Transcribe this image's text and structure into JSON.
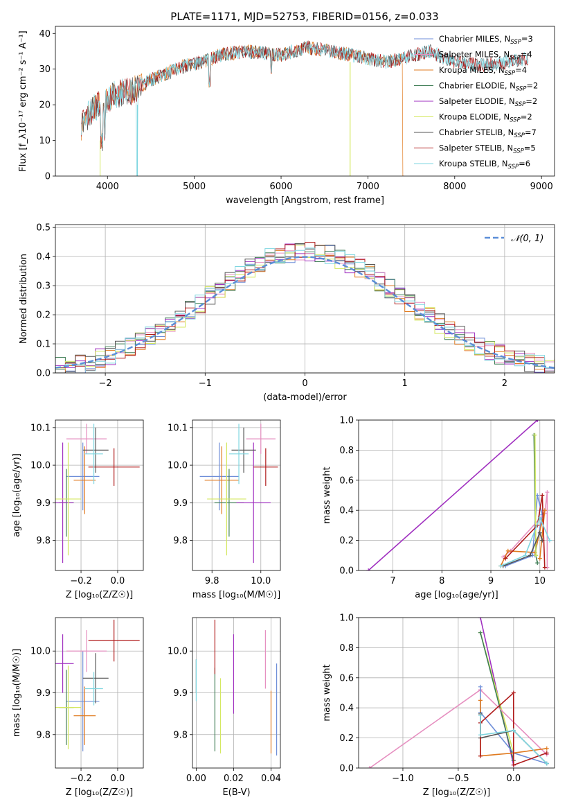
{
  "title": "PLATE=1171, MJD=52753, FIBERID=0156, z=0.033",
  "colors": {
    "chabrier_miles": "#6e8ed8",
    "salpeter_miles": "#e68fc0",
    "kroupa_miles": "#e07a1f",
    "chabrier_elodie": "#3f7d55",
    "salpeter_elodie": "#a030c0",
    "kroupa_elodie": "#d4e860",
    "chabrier_stelib": "#555555",
    "salpeter_stelib": "#b01c1c",
    "kroupa_stelib": "#7fd6e0",
    "gauss": "#5b8ed8"
  },
  "chart_data": [
    {
      "id": "spectrum",
      "type": "line",
      "xlabel": "wavelength [Angstrom, rest frame]",
      "ylabel": "Flux [f_λ10⁻¹⁷ erg cm⁻² s⁻¹ A⁻¹]",
      "xlim": [
        3400,
        9150
      ],
      "ylim": [
        0,
        42
      ],
      "xticks": [
        "4000",
        "5000",
        "6000",
        "7000",
        "8000",
        "9000"
      ],
      "yticks": [
        "0",
        "10",
        "20",
        "30",
        "40"
      ],
      "legend_position": "right",
      "legend": [
        {
          "label": "Chabrier MILES, N",
          "sub": "SSP",
          "suffix": "=3",
          "color": "chabrier_miles"
        },
        {
          "label": "Salpeter MILES, N",
          "sub": "SSP",
          "suffix": "=4",
          "color": "salpeter_miles"
        },
        {
          "label": "Kroupa MILES, N",
          "sub": "SSP",
          "suffix": "=4",
          "color": "kroupa_miles"
        },
        {
          "label": "Chabrier ELODIE, N",
          "sub": "SSP",
          "suffix": "=2",
          "color": "chabrier_elodie"
        },
        {
          "label": "Salpeter ELODIE, N",
          "sub": "SSP",
          "suffix": "=2",
          "color": "salpeter_elodie"
        },
        {
          "label": "Kroupa ELODIE, N",
          "sub": "SSP",
          "suffix": "=2",
          "color": "kroupa_elodie"
        },
        {
          "label": "Chabrier STELIB, N",
          "sub": "SSP",
          "suffix": "=7",
          "color": "chabrier_stelib"
        },
        {
          "label": "Salpeter STELIB, N",
          "sub": "SSP",
          "suffix": "=5",
          "color": "salpeter_stelib"
        },
        {
          "label": "Kroupa STELIB, N",
          "sub": "SSP",
          "suffix": "=6",
          "color": "kroupa_stelib"
        }
      ],
      "continuum": [
        [
          3700,
          14
        ],
        [
          3800,
          18
        ],
        [
          3950,
          21
        ],
        [
          4100,
          23
        ],
        [
          4300,
          24
        ],
        [
          4500,
          27
        ],
        [
          4700,
          29
        ],
        [
          4900,
          31
        ],
        [
          5100,
          32
        ],
        [
          5300,
          34
        ],
        [
          5600,
          35
        ],
        [
          6000,
          34
        ],
        [
          6300,
          36
        ],
        [
          6600,
          35
        ],
        [
          7000,
          33
        ],
        [
          7200,
          32
        ],
        [
          7400,
          33
        ],
        [
          7700,
          35
        ],
        [
          8000,
          32
        ],
        [
          8300,
          31
        ],
        [
          8600,
          32
        ],
        [
          8850,
          33
        ]
      ]
    },
    {
      "id": "residuals",
      "type": "histogram",
      "xlabel": "(data-model)/error",
      "ylabel": "Normed distribution",
      "xlim": [
        -2.5,
        2.5
      ],
      "ylim": [
        0,
        0.51
      ],
      "xticks": [
        "-2",
        "-1",
        "0",
        "1",
        "2"
      ],
      "yticks": [
        "0.0",
        "0.1",
        "0.2",
        "0.3",
        "0.4",
        "0.5"
      ],
      "legend_label": "𝒩(0, 1)",
      "legend_position": "top-right",
      "bin_width": 0.1
    },
    {
      "id": "age_vs_Z",
      "type": "errorbar",
      "xlabel": "Z [log₁₀(Z/Z☉)]",
      "ylabel": "age  [log₁₀(age/yr)]",
      "xlim": [
        -0.34,
        0.14
      ],
      "ylim": [
        9.72,
        10.12
      ],
      "xticks": [
        "-0.2",
        "0.0"
      ],
      "yticks": [
        "9.8",
        "9.9",
        "10.0",
        "10.1"
      ],
      "points": [
        {
          "color": "chabrier_miles",
          "x": -0.19,
          "y": 9.97,
          "xerr": 0.09,
          "yerr": 0.09
        },
        {
          "color": "salpeter_miles",
          "x": -0.17,
          "y": 10.07,
          "xerr": 0.11,
          "yerr": 0.04
        },
        {
          "color": "kroupa_miles",
          "x": -0.18,
          "y": 9.96,
          "xerr": 0.06,
          "yerr": 0.09
        },
        {
          "color": "chabrier_elodie",
          "x": -0.28,
          "y": 9.9,
          "xerr": 0.04,
          "yerr": 0.09
        },
        {
          "color": "salpeter_elodie",
          "x": -0.3,
          "y": 9.9,
          "xerr": 0.06,
          "yerr": 0.16
        },
        {
          "color": "kroupa_elodie",
          "x": -0.27,
          "y": 9.91,
          "xerr": 0.07,
          "yerr": 0.15
        },
        {
          "color": "chabrier_stelib",
          "x": -0.12,
          "y": 10.04,
          "xerr": 0.07,
          "yerr": 0.06
        },
        {
          "color": "salpeter_stelib",
          "x": -0.02,
          "y": 9.995,
          "xerr": 0.14,
          "yerr": 0.05
        },
        {
          "color": "kroupa_stelib",
          "x": -0.13,
          "y": 10.03,
          "xerr": 0.05,
          "yerr": 0.08
        }
      ]
    },
    {
      "id": "age_vs_mass",
      "type": "errorbar",
      "xlabel": "mass [log₁₀(M/M☉)]",
      "ylabel": "",
      "xlim": [
        9.72,
        10.08
      ],
      "ylim": [
        9.72,
        10.12
      ],
      "xticks": [
        "9.8",
        "10.0"
      ],
      "yticks": [
        "9.8",
        "9.9",
        "10.0",
        "10.1"
      ],
      "points": [
        {
          "color": "chabrier_miles",
          "x": 9.83,
          "y": 9.97,
          "xerr": 0.08,
          "yerr": 0.09
        },
        {
          "color": "salpeter_miles",
          "x": 10.0,
          "y": 10.07,
          "xerr": 0.06,
          "yerr": 0.04
        },
        {
          "color": "kroupa_miles",
          "x": 9.84,
          "y": 9.96,
          "xerr": 0.07,
          "yerr": 0.09
        },
        {
          "color": "chabrier_elodie",
          "x": 9.87,
          "y": 9.9,
          "xerr": 0.06,
          "yerr": 0.09
        },
        {
          "color": "salpeter_elodie",
          "x": 9.97,
          "y": 9.9,
          "xerr": 0.07,
          "yerr": 0.16
        },
        {
          "color": "kroupa_elodie",
          "x": 9.86,
          "y": 9.91,
          "xerr": 0.08,
          "yerr": 0.15
        },
        {
          "color": "chabrier_stelib",
          "x": 9.93,
          "y": 10.04,
          "xerr": 0.05,
          "yerr": 0.06
        },
        {
          "color": "salpeter_stelib",
          "x": 10.02,
          "y": 9.995,
          "xerr": 0.05,
          "yerr": 0.05
        },
        {
          "color": "kroupa_stelib",
          "x": 9.91,
          "y": 10.03,
          "xerr": 0.04,
          "yerr": 0.08
        }
      ]
    },
    {
      "id": "weight_vs_age",
      "type": "line",
      "xlabel": "age  [log₁₀(age/yr)]",
      "ylabel": "mass weight",
      "xlim": [
        6.3,
        10.3
      ],
      "ylim": [
        0,
        1
      ],
      "xticks": [
        "7",
        "8",
        "9",
        "10"
      ],
      "yticks": [
        "0.0",
        "0.2",
        "0.4",
        "0.6",
        "0.8",
        "1.0"
      ],
      "series": [
        {
          "color": "salpeter_elodie",
          "x": [
            6.5,
            9.95
          ],
          "y": [
            0.0,
            1.0
          ]
        },
        {
          "color": "chabrier_miles",
          "x": [
            9.3,
            9.85,
            9.95,
            10.05,
            9.9
          ],
          "y": [
            0.03,
            0.1,
            0.5,
            0.37,
            0.1
          ]
        },
        {
          "color": "salpeter_miles",
          "x": [
            9.25,
            9.4,
            10.1,
            10.15,
            10.15
          ],
          "y": [
            0.09,
            0.13,
            0.38,
            0.52,
            0.02
          ]
        },
        {
          "color": "kroupa_miles",
          "x": [
            9.2,
            9.35,
            9.9,
            10.1,
            10.0
          ],
          "y": [
            0.03,
            0.13,
            0.12,
            0.4,
            0.08
          ]
        },
        {
          "color": "chabrier_elodie",
          "x": [
            9.88,
            9.92,
            9.95
          ],
          "y": [
            0.9,
            0.1,
            0.05
          ]
        },
        {
          "color": "kroupa_elodie",
          "x": [
            9.9,
            9.92
          ],
          "y": [
            0.9,
            0.1
          ]
        },
        {
          "color": "chabrier_stelib",
          "x": [
            9.25,
            9.8,
            10.0,
            10.05
          ],
          "y": [
            0.03,
            0.1,
            0.25,
            0.2
          ]
        },
        {
          "color": "salpeter_stelib",
          "x": [
            9.3,
            9.95,
            10.05,
            10.1
          ],
          "y": [
            0.08,
            0.3,
            0.5,
            0.02
          ]
        },
        {
          "color": "kroupa_stelib",
          "x": [
            9.2,
            9.7,
            10.0,
            10.2
          ],
          "y": [
            0.03,
            0.1,
            0.35,
            0.2
          ]
        }
      ]
    },
    {
      "id": "mass_vs_Z",
      "type": "errorbar",
      "xlabel": "Z [log₁₀(Z/Z☉)]",
      "ylabel": "mass [log₁₀(M/M☉)]",
      "xlim": [
        -0.34,
        0.14
      ],
      "ylim": [
        9.72,
        10.08
      ],
      "xticks": [
        "-0.2",
        "0.0"
      ],
      "yticks": [
        "9.8",
        "9.9",
        "10.0"
      ],
      "points": [
        {
          "color": "chabrier_miles",
          "x": -0.19,
          "y": 9.88,
          "xerr": 0.09,
          "yerr": 0.12
        },
        {
          "color": "salpeter_miles",
          "x": -0.17,
          "y": 10.0,
          "xerr": 0.11,
          "yerr": 0.05
        },
        {
          "color": "kroupa_miles",
          "x": -0.18,
          "y": 9.845,
          "xerr": 0.06,
          "yerr": 0.07
        },
        {
          "color": "chabrier_elodie",
          "x": -0.28,
          "y": 9.865,
          "xerr": 0.04,
          "yerr": 0.09
        },
        {
          "color": "salpeter_elodie",
          "x": -0.3,
          "y": 9.97,
          "xerr": 0.06,
          "yerr": 0.07
        },
        {
          "color": "kroupa_elodie",
          "x": -0.27,
          "y": 9.865,
          "xerr": 0.07,
          "yerr": 0.1
        },
        {
          "color": "chabrier_stelib",
          "x": -0.12,
          "y": 9.935,
          "xerr": 0.07,
          "yerr": 0.06
        },
        {
          "color": "salpeter_stelib",
          "x": -0.02,
          "y": 10.025,
          "xerr": 0.14,
          "yerr": 0.05
        },
        {
          "color": "kroupa_stelib",
          "x": -0.13,
          "y": 9.91,
          "xerr": 0.05,
          "yerr": 0.04
        }
      ]
    },
    {
      "id": "ebv",
      "type": "errorbar",
      "xlabel": "E(B-V)",
      "ylabel": "",
      "xlim": [
        -0.002,
        0.045
      ],
      "ylim": [
        9.72,
        10.08
      ],
      "xticks": [
        "0.00",
        "0.02",
        "0.04"
      ],
      "yticks": [
        "9.8",
        "9.9",
        "10.0"
      ],
      "points": [
        {
          "color": "chabrier_miles",
          "x": 0.043,
          "y": 9.86,
          "yerr": 0.11
        },
        {
          "color": "salpeter_miles",
          "x": 0.037,
          "y": 9.98,
          "yerr": 0.07
        },
        {
          "color": "kroupa_miles",
          "x": 0.04,
          "y": 9.83,
          "yerr": 0.075
        },
        {
          "color": "chabrier_elodie",
          "x": 0.01,
          "y": 9.86,
          "yerr": 0.1
        },
        {
          "color": "salpeter_elodie",
          "x": 0.02,
          "y": 9.945,
          "yerr": 0.095
        },
        {
          "color": "kroupa_elodie",
          "x": 0.013,
          "y": 9.845,
          "yerr": 0.09
        },
        {
          "color": "chabrier_stelib",
          "x": 0.0,
          "y": 9.94,
          "yerr": 0.04
        },
        {
          "color": "salpeter_stelib",
          "x": 0.01,
          "y": 10.01,
          "yerr": 0.065
        },
        {
          "color": "kroupa_stelib",
          "x": 0.0,
          "y": 9.93,
          "yerr": 0.05
        }
      ]
    },
    {
      "id": "weight_vs_Z",
      "type": "line",
      "xlabel": "Z [log₁₀(Z/Z☉)]",
      "ylabel": "mass weight",
      "xlim": [
        -1.4,
        0.37
      ],
      "ylim": [
        0,
        1
      ],
      "xticks": [
        "-1.0",
        "-0.5",
        "0.0"
      ],
      "yticks": [
        "0.0",
        "0.2",
        "0.4",
        "0.6",
        "0.8",
        "1.0"
      ],
      "series": [
        {
          "color": "salpeter_elodie",
          "x": [
            -0.3,
            0.0
          ],
          "y": [
            1.0,
            0.02
          ]
        },
        {
          "color": "kroupa_elodie",
          "x": [
            -0.3,
            0.0
          ],
          "y": [
            0.9,
            0.1
          ]
        },
        {
          "color": "chabrier_elodie",
          "x": [
            -0.3,
            0.0
          ],
          "y": [
            0.9,
            0.05
          ]
        },
        {
          "color": "salpeter_miles",
          "x": [
            -1.3,
            -0.3,
            0.3
          ],
          "y": [
            0.0,
            0.52,
            0.09
          ]
        },
        {
          "color": "chabrier_miles",
          "x": [
            -0.3,
            -0.3,
            0.0,
            0.3
          ],
          "y": [
            0.54,
            0.37,
            0.1,
            0.03
          ]
        },
        {
          "color": "kroupa_miles",
          "x": [
            -0.3,
            -0.3,
            0.0,
            0.3
          ],
          "y": [
            0.45,
            0.08,
            0.1,
            0.13
          ]
        },
        {
          "color": "chabrier_stelib",
          "x": [
            -0.3,
            -0.3,
            0.0,
            0.3
          ],
          "y": [
            0.36,
            0.2,
            0.25,
            0.03
          ]
        },
        {
          "color": "salpeter_stelib",
          "x": [
            -0.3,
            -0.3,
            0.0,
            0.0,
            0.3
          ],
          "y": [
            0.08,
            0.3,
            0.5,
            0.02,
            0.1
          ]
        },
        {
          "color": "kroupa_stelib",
          "x": [
            -0.3,
            -0.3,
            0.0,
            0.3
          ],
          "y": [
            0.35,
            0.22,
            0.25,
            0.03
          ]
        }
      ]
    }
  ]
}
